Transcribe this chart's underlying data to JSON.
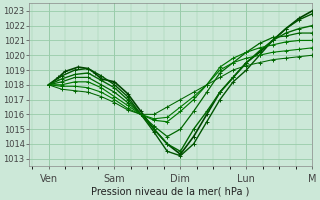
{
  "xlabel": "Pression niveau de la mer( hPa )",
  "bg_color": "#cce8d8",
  "grid_color": "#99ccaa",
  "ylim": [
    1012.5,
    1023.5
  ],
  "yticks": [
    1013,
    1014,
    1015,
    1016,
    1017,
    1018,
    1019,
    1020,
    1021,
    1022,
    1023
  ],
  "xlim": [
    0,
    4.3
  ],
  "xtick_labels": [
    "Ven",
    "Sam",
    "Dim",
    "Lun",
    "M"
  ],
  "xtick_positions": [
    0.3,
    1.3,
    2.3,
    3.3,
    4.3
  ],
  "detail_lines": [
    {
      "x": [
        0.3,
        0.45,
        0.55,
        0.75,
        0.9,
        1.0,
        1.1,
        1.3,
        1.5,
        1.7,
        1.9,
        2.1,
        2.3,
        2.5,
        2.7,
        2.9,
        3.1,
        3.3,
        3.5,
        3.7,
        3.9,
        4.1,
        4.3
      ],
      "y": [
        1018.0,
        1018.5,
        1018.9,
        1019.2,
        1019.1,
        1018.8,
        1018.4,
        1018.2,
        1017.4,
        1016.2,
        1015.0,
        1014.0,
        1013.3,
        1014.5,
        1016.0,
        1017.5,
        1018.5,
        1019.5,
        1020.2,
        1021.0,
        1021.8,
        1022.5,
        1023.0
      ]
    },
    {
      "x": [
        0.3,
        0.5,
        0.7,
        0.9,
        1.1,
        1.3,
        1.5,
        1.7,
        1.9,
        2.1,
        2.3,
        2.5,
        2.7,
        2.9,
        3.1,
        3.3,
        3.5,
        3.7,
        3.9,
        4.1,
        4.3
      ],
      "y": [
        1018.0,
        1018.6,
        1019.0,
        1019.1,
        1018.6,
        1018.0,
        1017.2,
        1016.0,
        1014.8,
        1013.5,
        1013.2,
        1014.0,
        1015.5,
        1017.0,
        1018.2,
        1019.0,
        1020.0,
        1021.0,
        1021.8,
        1022.4,
        1022.8
      ]
    },
    {
      "x": [
        0.3,
        0.5,
        0.7,
        0.9,
        1.1,
        1.3,
        1.5,
        1.7,
        1.9,
        2.1,
        2.3,
        2.5,
        2.7,
        2.9,
        3.1,
        3.3,
        3.5,
        3.7,
        3.9,
        4.1,
        4.3
      ],
      "y": [
        1018.0,
        1018.4,
        1018.7,
        1018.8,
        1018.3,
        1017.8,
        1017.0,
        1016.0,
        1015.0,
        1014.0,
        1013.5,
        1015.0,
        1016.2,
        1017.5,
        1018.5,
        1019.5,
        1020.3,
        1021.0,
        1021.5,
        1021.8,
        1022.0
      ]
    },
    {
      "x": [
        0.3,
        0.5,
        0.7,
        0.9,
        1.1,
        1.3,
        1.5,
        1.7,
        1.9,
        2.1,
        2.3,
        2.5,
        2.7,
        2.9,
        3.1,
        3.3,
        3.5,
        3.7,
        3.9,
        4.1,
        4.3
      ],
      "y": [
        1018.0,
        1018.2,
        1018.5,
        1018.5,
        1018.0,
        1017.5,
        1016.8,
        1016.0,
        1015.2,
        1014.5,
        1015.0,
        1016.2,
        1017.5,
        1018.8,
        1019.5,
        1020.2,
        1020.8,
        1021.2,
        1021.3,
        1021.5,
        1021.5
      ]
    },
    {
      "x": [
        0.3,
        0.5,
        0.7,
        0.9,
        1.1,
        1.3,
        1.5,
        1.7,
        1.9,
        2.1,
        2.3,
        2.5,
        2.7,
        2.9,
        3.1,
        3.3,
        3.5,
        3.7,
        3.9,
        4.1,
        4.3
      ],
      "y": [
        1018.0,
        1018.0,
        1018.2,
        1018.2,
        1017.8,
        1017.2,
        1016.6,
        1016.0,
        1015.6,
        1015.5,
        1016.2,
        1017.0,
        1018.0,
        1019.2,
        1019.8,
        1020.2,
        1020.5,
        1020.7,
        1020.9,
        1021.0,
        1021.0
      ]
    },
    {
      "x": [
        0.3,
        0.5,
        0.7,
        0.9,
        1.1,
        1.3,
        1.5,
        1.7,
        1.9,
        2.1,
        2.3,
        2.5,
        2.7,
        2.9,
        3.1,
        3.3,
        3.5,
        3.7,
        3.9,
        4.1,
        4.3
      ],
      "y": [
        1018.0,
        1017.9,
        1017.9,
        1017.8,
        1017.5,
        1017.0,
        1016.4,
        1016.0,
        1015.7,
        1015.8,
        1016.5,
        1017.2,
        1018.0,
        1019.0,
        1019.5,
        1019.8,
        1020.0,
        1020.2,
        1020.3,
        1020.4,
        1020.5
      ]
    },
    {
      "x": [
        0.3,
        0.5,
        0.7,
        0.9,
        1.1,
        1.3,
        1.5,
        1.7,
        1.9,
        2.1,
        2.3,
        2.5,
        2.7,
        2.9,
        3.1,
        3.3,
        3.5,
        3.7,
        3.9,
        4.1,
        4.3
      ],
      "y": [
        1018.0,
        1017.7,
        1017.6,
        1017.5,
        1017.2,
        1016.8,
        1016.3,
        1016.0,
        1016.0,
        1016.5,
        1017.0,
        1017.5,
        1018.0,
        1018.5,
        1019.0,
        1019.3,
        1019.5,
        1019.7,
        1019.8,
        1019.9,
        1020.0
      ]
    }
  ]
}
